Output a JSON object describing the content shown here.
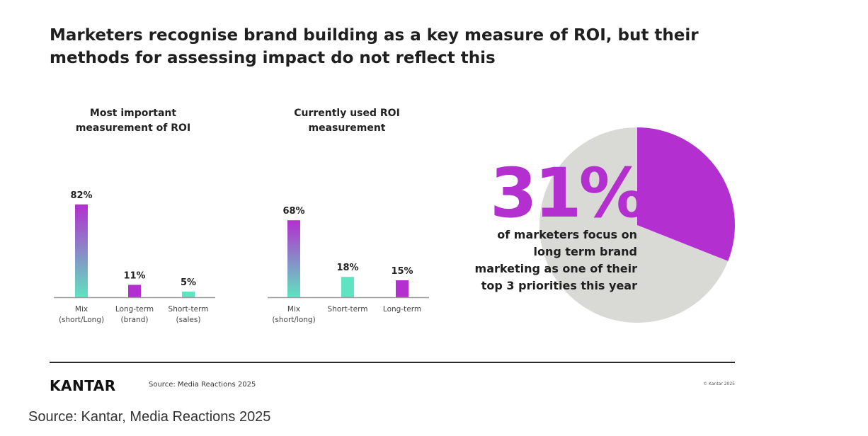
{
  "headline": {
    "line1": "Marketers recognise brand building as a key measure of ROI, but their",
    "line2": "methods for assessing impact do not reflect this"
  },
  "colors": {
    "purple": "#b32fcf",
    "teal": "#5fe3c0",
    "pie_grey": "#d9d9d6",
    "text": "#1f1f1f"
  },
  "chart_data": [
    {
      "type": "bar",
      "title_lines": [
        "Most important",
        "measurement of ROI"
      ],
      "categories": [
        [
          "Mix",
          "(short/Long)"
        ],
        [
          "Long-term",
          "(brand)"
        ],
        [
          "Short-term",
          "(sales)"
        ]
      ],
      "values": [
        82,
        11,
        5
      ],
      "data_labels": [
        "82%",
        "11%",
        "5%"
      ],
      "bar_fills": [
        "gradient",
        "purple",
        "teal"
      ],
      "ylim": [
        0,
        100
      ],
      "grid": false
    },
    {
      "type": "bar",
      "title_lines": [
        "Currently used ROI",
        "measurement"
      ],
      "categories": [
        [
          "Mix",
          "(short/long)"
        ],
        [
          "Short-term"
        ],
        [
          "Long-term"
        ]
      ],
      "values": [
        68,
        18,
        15
      ],
      "data_labels": [
        "68%",
        "18%",
        "15%"
      ],
      "bar_fills": [
        "gradient",
        "teal",
        "purple"
      ],
      "ylim": [
        0,
        100
      ],
      "grid": false
    },
    {
      "type": "pie",
      "values": [
        31,
        69
      ],
      "highlight": "31%",
      "highlight_text_lines": [
        "of marketers focus on",
        "long term brand",
        "marketing as one of their",
        "top 3 priorities this year"
      ]
    }
  ],
  "footer": {
    "logo": "KANTAR",
    "source": "Source: Media Reactions 2025",
    "copyright": "© Kantar 2025"
  },
  "caption": "Source: Kantar, Media Reactions 2025"
}
